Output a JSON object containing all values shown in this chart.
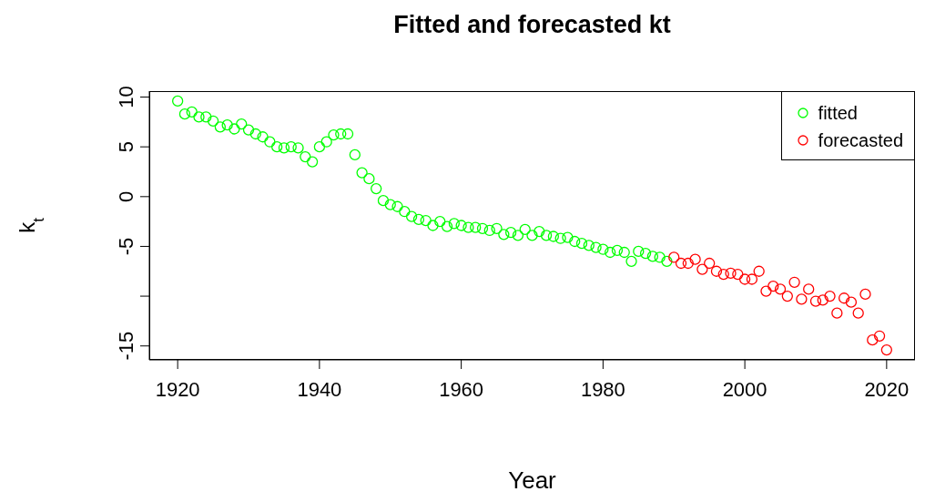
{
  "chart_data": {
    "type": "scatter",
    "title": "Fitted and forecasted kt",
    "xlabel": "Year",
    "ylabel": "k$_{t}$",
    "xlim": [
      1916,
      2024
    ],
    "xticks": [
      1920,
      1940,
      1960,
      1980,
      2000,
      2020
    ],
    "ylim": [
      -16.4,
      10.6
    ],
    "yticks": [
      -15,
      {
        "value": -10,
        "label": null
      },
      -5,
      0,
      5,
      10
    ],
    "legend": "top right",
    "marker": "circle",
    "grid": false,
    "series": [
      {
        "name": "fitted",
        "color": "#00ff00",
        "x": [
          1920,
          1921,
          1922,
          1923,
          1924,
          1925,
          1926,
          1927,
          1928,
          1929,
          1930,
          1931,
          1932,
          1933,
          1934,
          1935,
          1936,
          1937,
          1938,
          1939,
          1940,
          1941,
          1942,
          1943,
          1944,
          1945,
          1946,
          1947,
          1948,
          1949,
          1950,
          1951,
          1952,
          1953,
          1954,
          1955,
          1956,
          1957,
          1958,
          1959,
          1960,
          1961,
          1962,
          1963,
          1964,
          1965,
          1966,
          1967,
          1968,
          1969,
          1970,
          1971,
          1972,
          1973,
          1974,
          1975,
          1976,
          1977,
          1978,
          1979,
          1980,
          1981,
          1982,
          1983,
          1984,
          1985,
          1986,
          1987,
          1988,
          1989
        ],
        "values": [
          9.6,
          8.3,
          8.5,
          8.0,
          8.0,
          7.6,
          7.0,
          7.2,
          6.8,
          7.3,
          6.7,
          6.3,
          6.0,
          5.5,
          5.0,
          4.9,
          5.0,
          4.9,
          4.0,
          3.5,
          5.0,
          5.5,
          6.2,
          6.3,
          6.3,
          4.2,
          2.4,
          1.8,
          0.8,
          -0.4,
          -0.8,
          -1.0,
          -1.5,
          -2.0,
          -2.3,
          -2.4,
          -2.9,
          -2.5,
          -3.0,
          -2.7,
          -2.9,
          -3.1,
          -3.1,
          -3.2,
          -3.4,
          -3.2,
          -3.8,
          -3.6,
          -3.9,
          -3.3,
          -3.9,
          -3.5,
          -3.9,
          -4.0,
          -4.2,
          -4.1,
          -4.5,
          -4.7,
          -4.9,
          -5.1,
          -5.3,
          -5.6,
          -5.4,
          -5.6,
          -6.5,
          -5.5,
          -5.7,
          -6.0,
          -6.1,
          -6.5
        ]
      },
      {
        "name": "forecasted",
        "color": "#ff0000",
        "x": [
          1990,
          1991,
          1992,
          1993,
          1994,
          1995,
          1996,
          1997,
          1998,
          1999,
          2000,
          2001,
          2002,
          2003,
          2004,
          2005,
          2006,
          2007,
          2008,
          2009,
          2010,
          2011,
          2012,
          2013,
          2014,
          2015,
          2016,
          2017,
          2018,
          2019,
          2020
        ],
        "values": [
          -6.1,
          -6.7,
          -6.7,
          -6.3,
          -7.3,
          -6.7,
          -7.5,
          -7.8,
          -7.7,
          -7.8,
          -8.3,
          -8.3,
          -7.5,
          -9.5,
          -9.0,
          -9.3,
          -10.0,
          -8.6,
          -10.3,
          -9.3,
          -10.5,
          -10.4,
          -10.0,
          -11.7,
          -10.2,
          -10.6,
          -11.7,
          -9.8,
          -14.4,
          -14.0,
          -15.4
        ]
      }
    ]
  }
}
